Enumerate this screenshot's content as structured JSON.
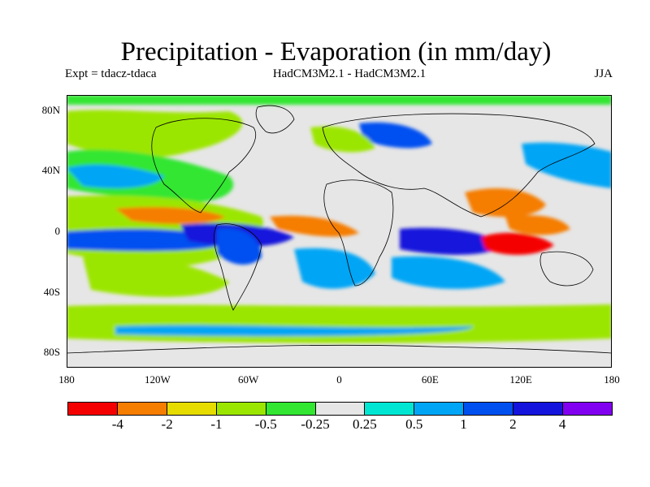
{
  "title": "Precipitation - Evaporation (in mm/day)",
  "experiment_label": "Expt = tdacz-tdaca",
  "model_label": "HadCM3M2.1 - HadCM3M2.1",
  "season_label": "JJA",
  "map": {
    "projection": "cylindrical equidistant",
    "lon_range": [
      -180,
      180
    ],
    "lat_range": [
      -90,
      90
    ],
    "lat_ticks": [
      "80N",
      "40N",
      "0",
      "40S",
      "80S"
    ],
    "lat_tick_values": [
      80,
      40,
      0,
      -40,
      -80
    ],
    "lon_ticks": [
      "180",
      "120W",
      "60W",
      "0",
      "60E",
      "120E",
      "180"
    ],
    "lon_tick_values": [
      -180,
      -120,
      -60,
      0,
      60,
      120,
      180
    ]
  },
  "colorbar": {
    "colors": [
      "#f50000",
      "#f57d00",
      "#e6dc00",
      "#9be600",
      "#32e632",
      "#e6e6e6",
      "#00e6d2",
      "#00a5f5",
      "#0050f0",
      "#1414dc",
      "#8200f0"
    ],
    "labels": [
      "-4",
      "-2",
      "-1",
      "-0.5",
      "-0.25",
      "0.25",
      "0.5",
      "1",
      "2",
      "4"
    ]
  }
}
